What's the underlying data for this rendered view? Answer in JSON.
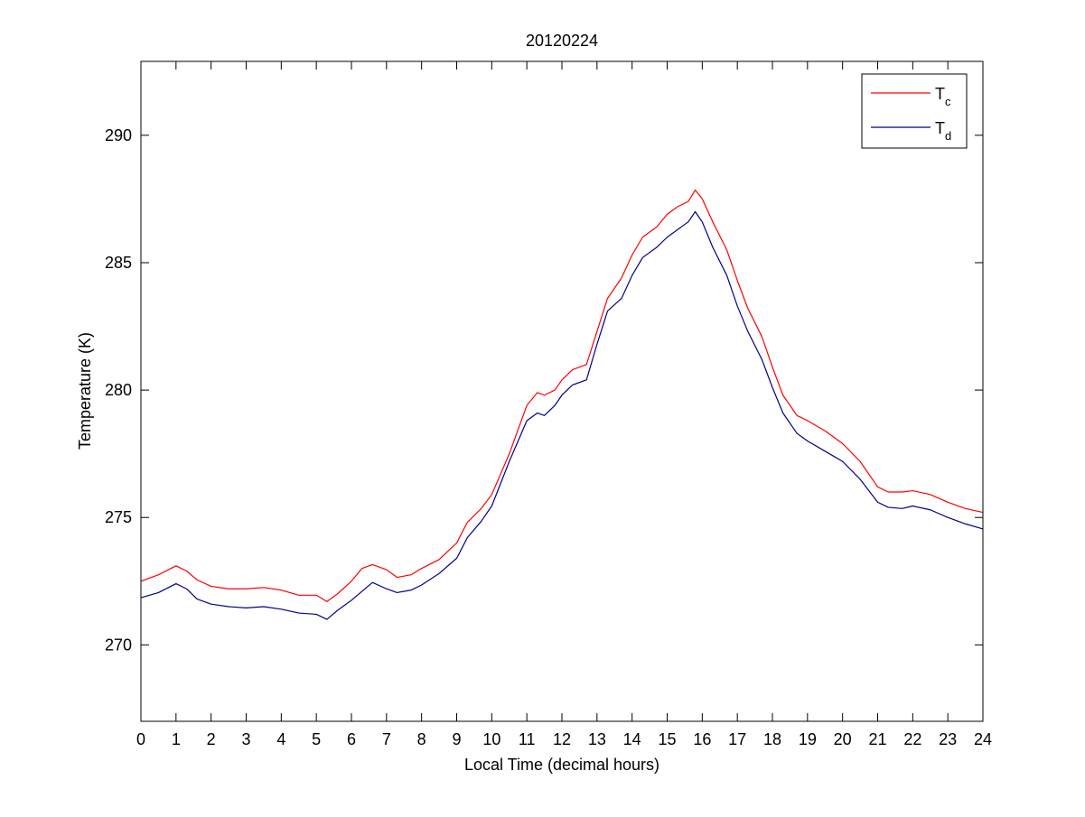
{
  "chart_data": {
    "type": "line",
    "title": "20120224",
    "xlabel": "Local Time (decimal hours)",
    "ylabel": "Temperature (K)",
    "xlim": [
      0,
      24
    ],
    "ylim": [
      267,
      292.9
    ],
    "xticks": [
      0,
      1,
      2,
      3,
      4,
      5,
      6,
      7,
      8,
      9,
      10,
      11,
      12,
      13,
      14,
      15,
      16,
      17,
      18,
      19,
      20,
      21,
      22,
      23,
      24
    ],
    "yticks": [
      270,
      275,
      280,
      285,
      290
    ],
    "grid": false,
    "legend_position": "top-right",
    "series": [
      {
        "name": "T_c",
        "legend_main": "T",
        "legend_sub": "c",
        "color": "#ff0000",
        "x": [
          0,
          0.5,
          1.0,
          1.3,
          1.6,
          2.0,
          2.5,
          3.0,
          3.5,
          4.0,
          4.5,
          5.0,
          5.3,
          5.6,
          6.0,
          6.3,
          6.6,
          7.0,
          7.3,
          7.7,
          8.0,
          8.5,
          9.0,
          9.3,
          9.7,
          10.0,
          10.5,
          11.0,
          11.3,
          11.5,
          11.8,
          12.0,
          12.3,
          12.7,
          13.0,
          13.3,
          13.7,
          14.0,
          14.3,
          14.7,
          15.0,
          15.3,
          15.6,
          15.8,
          16.0,
          16.3,
          16.7,
          17.0,
          17.3,
          17.7,
          18.0,
          18.3,
          18.7,
          19.0,
          19.5,
          20.0,
          20.5,
          21.0,
          21.3,
          21.7,
          22.0,
          22.5,
          23.0,
          23.5,
          24.0
        ],
        "values": [
          272.5,
          272.75,
          273.1,
          272.9,
          272.55,
          272.3,
          272.2,
          272.2,
          272.25,
          272.15,
          271.95,
          271.95,
          271.7,
          272.0,
          272.5,
          273.0,
          273.15,
          272.95,
          272.65,
          272.75,
          273.0,
          273.35,
          274.0,
          274.8,
          275.35,
          275.9,
          277.5,
          279.4,
          279.9,
          279.8,
          280.0,
          280.4,
          280.8,
          281.0,
          282.3,
          283.6,
          284.4,
          285.3,
          286.0,
          286.4,
          286.9,
          287.2,
          287.4,
          287.85,
          287.5,
          286.6,
          285.5,
          284.3,
          283.2,
          282.1,
          280.9,
          279.8,
          279.0,
          278.8,
          278.4,
          277.9,
          277.2,
          276.2,
          276.0,
          276.0,
          276.05,
          275.9,
          275.6,
          275.35,
          275.2
        ]
      },
      {
        "name": "T_d",
        "legend_main": "T",
        "legend_sub": "d",
        "color": "#00008b",
        "x": [
          0,
          0.5,
          1.0,
          1.3,
          1.6,
          2.0,
          2.5,
          3.0,
          3.5,
          4.0,
          4.5,
          5.0,
          5.3,
          5.6,
          6.0,
          6.3,
          6.6,
          7.0,
          7.3,
          7.7,
          8.0,
          8.5,
          9.0,
          9.3,
          9.7,
          10.0,
          10.5,
          11.0,
          11.3,
          11.5,
          11.8,
          12.0,
          12.3,
          12.7,
          13.0,
          13.3,
          13.7,
          14.0,
          14.3,
          14.7,
          15.0,
          15.3,
          15.6,
          15.8,
          16.0,
          16.3,
          16.7,
          17.0,
          17.3,
          17.7,
          18.0,
          18.3,
          18.7,
          19.0,
          19.5,
          20.0,
          20.5,
          21.0,
          21.3,
          21.7,
          22.0,
          22.5,
          23.0,
          23.5,
          24.0
        ],
        "values": [
          271.85,
          272.05,
          272.4,
          272.2,
          271.8,
          271.6,
          271.5,
          271.45,
          271.5,
          271.4,
          271.25,
          271.2,
          271.0,
          271.35,
          271.75,
          272.1,
          272.45,
          272.2,
          272.05,
          272.15,
          272.35,
          272.8,
          273.4,
          274.2,
          274.85,
          275.45,
          277.2,
          278.8,
          279.1,
          279.0,
          279.4,
          279.8,
          280.2,
          280.4,
          281.8,
          283.1,
          283.6,
          284.5,
          285.2,
          285.6,
          286.0,
          286.3,
          286.6,
          287.0,
          286.6,
          285.6,
          284.5,
          283.3,
          282.3,
          281.2,
          280.1,
          279.1,
          278.3,
          278.0,
          277.6,
          277.2,
          276.5,
          275.6,
          275.4,
          275.35,
          275.45,
          275.3,
          275.0,
          274.75,
          274.55
        ]
      }
    ]
  }
}
